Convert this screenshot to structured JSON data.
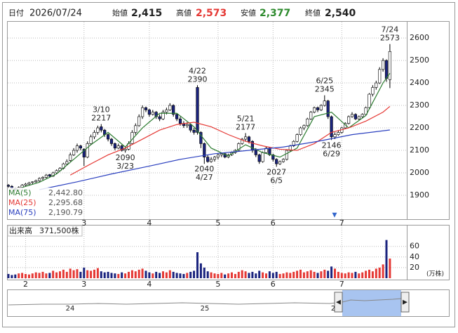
{
  "header": {
    "date_label": "日付",
    "date": "2026/07/24",
    "open_label": "始値",
    "open": "2,415",
    "high_label": "高値",
    "high": "2,573",
    "low_label": "安値",
    "low": "2,377",
    "close_label": "終値",
    "close": "2,540"
  },
  "chart_data": [
    {
      "type": "candlestick",
      "up_color": "#ffffff",
      "down_color": "#1a237e",
      "ylim": [
        1800,
        2669
      ],
      "yticks": [
        1900,
        2000,
        2100,
        2200,
        2300,
        2400,
        2500,
        2600
      ],
      "grid": true,
      "xticks": [
        {
          "value": 22,
          "label": "3"
        },
        {
          "value": 41,
          "label": "4"
        },
        {
          "value": 61,
          "label": "5"
        },
        {
          "value": 77,
          "label": "6"
        },
        {
          "value": 97,
          "label": "7"
        }
      ],
      "ohlc": [
        [
          1945,
          1950,
          1930,
          1940
        ],
        [
          1940,
          1945,
          1925,
          1930
        ],
        [
          1930,
          1935,
          1918,
          1925
        ],
        [
          1925,
          1940,
          1920,
          1935
        ],
        [
          1935,
          1950,
          1930,
          1945
        ],
        [
          1945,
          1955,
          1940,
          1950
        ],
        [
          1950,
          1960,
          1945,
          1955
        ],
        [
          1958,
          1962,
          1950,
          1960
        ],
        [
          1960,
          1970,
          1955,
          1965
        ],
        [
          1965,
          1980,
          1960,
          1975
        ],
        [
          1975,
          1985,
          1968,
          1980
        ],
        [
          1980,
          1995,
          1975,
          1990
        ],
        [
          1992,
          1995,
          1980,
          1985
        ],
        [
          1985,
          2005,
          1982,
          2000
        ],
        [
          2000,
          2015,
          1995,
          2010
        ],
        [
          2010,
          2025,
          2005,
          2020
        ],
        [
          2020,
          2045,
          2015,
          2040
        ],
        [
          2040,
          2060,
          2035,
          2050
        ],
        [
          2055,
          2090,
          2050,
          2080
        ],
        [
          2080,
          2110,
          2075,
          2100
        ],
        [
          2100,
          2130,
          2090,
          2120
        ],
        [
          2120,
          2125,
          2100,
          2110
        ],
        [
          2105,
          2110,
          2030,
          2070
        ],
        [
          2070,
          2140,
          2065,
          2130
        ],
        [
          2130,
          2170,
          2125,
          2160
        ],
        [
          2160,
          2190,
          2150,
          2180
        ],
        [
          2180,
          2210,
          2170,
          2200
        ],
        [
          2205,
          2217,
          2180,
          2190
        ],
        [
          2190,
          2195,
          2160,
          2170
        ],
        [
          2170,
          2175,
          2140,
          2150
        ],
        [
          2150,
          2155,
          2120,
          2130
        ],
        [
          2130,
          2135,
          2100,
          2110
        ],
        [
          2110,
          2130,
          2105,
          2120
        ],
        [
          2120,
          2125,
          2095,
          2100
        ],
        [
          2100,
          2115,
          2090,
          2105
        ],
        [
          2105,
          2140,
          2100,
          2130
        ],
        [
          2130,
          2190,
          2125,
          2180
        ],
        [
          2180,
          2220,
          2170,
          2210
        ],
        [
          2210,
          2260,
          2205,
          2250
        ],
        [
          2250,
          2300,
          2240,
          2290
        ],
        [
          2290,
          2295,
          2270,
          2280
        ],
        [
          2280,
          2285,
          2250,
          2260
        ],
        [
          2260,
          2280,
          2255,
          2270
        ],
        [
          2270,
          2275,
          2240,
          2250
        ],
        [
          2250,
          2260,
          2230,
          2240
        ],
        [
          2240,
          2280,
          2235,
          2270
        ],
        [
          2270,
          2290,
          2260,
          2280
        ],
        [
          2280,
          2310,
          2275,
          2300
        ],
        [
          2300,
          2305,
          2250,
          2260
        ],
        [
          2260,
          2265,
          2230,
          2240
        ],
        [
          2240,
          2250,
          2210,
          2220
        ],
        [
          2220,
          2230,
          2200,
          2210
        ],
        [
          2210,
          2225,
          2200,
          2215
        ],
        [
          2215,
          2220,
          2180,
          2190
        ],
        [
          2190,
          2200,
          2170,
          2180
        ],
        [
          2380,
          2390,
          2170,
          2180
        ],
        [
          2180,
          2185,
          2110,
          2130
        ],
        [
          2130,
          2135,
          2040,
          2070
        ],
        [
          2070,
          2080,
          2045,
          2050
        ],
        [
          2050,
          2070,
          2045,
          2060
        ],
        [
          2060,
          2075,
          2050,
          2070
        ],
        [
          2070,
          2085,
          2060,
          2080
        ],
        [
          2080,
          2090,
          2070,
          2085
        ],
        [
          2085,
          2090,
          2065,
          2070
        ],
        [
          2070,
          2085,
          2065,
          2080
        ],
        [
          2080,
          2095,
          2075,
          2090
        ],
        [
          2090,
          2105,
          2085,
          2100
        ],
        [
          2100,
          2135,
          2095,
          2130
        ],
        [
          2130,
          2155,
          2125,
          2150
        ],
        [
          2150,
          2177,
          2140,
          2160
        ],
        [
          2160,
          2165,
          2130,
          2140
        ],
        [
          2140,
          2145,
          2090,
          2100
        ],
        [
          2100,
          2110,
          2070,
          2080
        ],
        [
          2080,
          2085,
          2040,
          2050
        ],
        [
          2050,
          2095,
          2045,
          2090
        ],
        [
          2090,
          2115,
          2085,
          2110
        ],
        [
          2110,
          2115,
          2075,
          2080
        ],
        [
          2080,
          2085,
          2050,
          2060
        ],
        [
          2060,
          2065,
          2027,
          2040
        ],
        [
          2040,
          2055,
          2035,
          2050
        ],
        [
          2050,
          2065,
          2045,
          2060
        ],
        [
          2060,
          2105,
          2055,
          2100
        ],
        [
          2100,
          2125,
          2095,
          2120
        ],
        [
          2120,
          2145,
          2115,
          2140
        ],
        [
          2140,
          2175,
          2135,
          2170
        ],
        [
          2170,
          2205,
          2165,
          2200
        ],
        [
          2200,
          2215,
          2190,
          2210
        ],
        [
          2210,
          2245,
          2205,
          2240
        ],
        [
          2240,
          2275,
          2235,
          2270
        ],
        [
          2270,
          2295,
          2265,
          2290
        ],
        [
          2290,
          2295,
          2270,
          2280
        ],
        [
          2280,
          2305,
          2275,
          2300
        ],
        [
          2300,
          2345,
          2295,
          2320
        ],
        [
          2320,
          2325,
          2240,
          2250
        ],
        [
          2250,
          2255,
          2146,
          2160
        ],
        [
          2160,
          2180,
          2150,
          2170
        ],
        [
          2170,
          2190,
          2165,
          2180
        ],
        [
          2180,
          2205,
          2175,
          2200
        ],
        [
          2200,
          2225,
          2195,
          2220
        ],
        [
          2220,
          2255,
          2215,
          2250
        ],
        [
          2250,
          2270,
          2245,
          2260
        ],
        [
          2260,
          2265,
          2235,
          2240
        ],
        [
          2240,
          2255,
          2235,
          2250
        ],
        [
          2250,
          2265,
          2245,
          2260
        ],
        [
          2260,
          2295,
          2255,
          2290
        ],
        [
          2290,
          2355,
          2285,
          2350
        ],
        [
          2350,
          2390,
          2340,
          2380
        ],
        [
          2380,
          2410,
          2370,
          2400
        ],
        [
          2400,
          2470,
          2395,
          2460
        ],
        [
          2460,
          2510,
          2450,
          2500
        ],
        [
          2500,
          2505,
          2405,
          2420
        ],
        [
          2415,
          2573,
          2377,
          2540
        ]
      ],
      "ma": [
        {
          "name": "MA(5)",
          "color": "#2e7d32",
          "x": [
            4,
            9,
            14,
            19,
            24,
            29,
            34,
            39,
            44,
            49,
            54,
            59,
            64,
            69,
            74,
            79,
            84,
            89,
            94,
            99,
            104,
            109,
            111
          ],
          "values": [
            1935,
            1958,
            1995,
            2060,
            2125,
            2180,
            2115,
            2200,
            2265,
            2265,
            2205,
            2110,
            2075,
            2125,
            2090,
            2070,
            2110,
            2250,
            2270,
            2200,
            2255,
            2400,
            2442.8
          ],
          "last_value_label": "2,442.80"
        },
        {
          "name": "MA(25)",
          "color": "#e53935",
          "x": [
            18,
            24,
            29,
            34,
            39,
            44,
            49,
            54,
            59,
            64,
            69,
            74,
            79,
            84,
            89,
            94,
            99,
            104,
            109,
            111
          ],
          "values": [
            1990,
            2040,
            2080,
            2110,
            2150,
            2190,
            2215,
            2225,
            2205,
            2170,
            2140,
            2120,
            2105,
            2100,
            2130,
            2180,
            2200,
            2230,
            2270,
            2295.68
          ],
          "last_value_label": "2,295.68"
        },
        {
          "name": "MA(75)",
          "color": "#2a3fbf",
          "x": [
            9,
            20,
            30,
            41,
            50,
            60,
            70,
            80,
            90,
            100,
            111
          ],
          "values": [
            1925,
            1960,
            1995,
            2030,
            2060,
            2085,
            2100,
            2115,
            2140,
            2170,
            2190.79
          ],
          "last_value_label": "2,190.79"
        }
      ],
      "annotations": [
        {
          "x": 27,
          "date": "3/10",
          "value": 2217,
          "place": "above"
        },
        {
          "x": 34,
          "date": "3/23",
          "value": 2090,
          "place": "below"
        },
        {
          "x": 55,
          "date": "4/22",
          "value": 2390,
          "place": "above"
        },
        {
          "x": 57,
          "date": "4/27",
          "value": 2040,
          "place": "below"
        },
        {
          "x": 69,
          "date": "5/21",
          "value": 2177,
          "place": "above"
        },
        {
          "x": 78,
          "date": "6/5",
          "value": 2027,
          "place": "below"
        },
        {
          "x": 92,
          "date": "6/25",
          "value": 2345,
          "place": "above"
        },
        {
          "x": 94,
          "date": "6/29",
          "value": 2146,
          "place": "below"
        },
        {
          "x": 111,
          "date": "7/24",
          "value": 2573,
          "place": "above"
        }
      ]
    },
    {
      "type": "bar",
      "title": "出来高",
      "latest_label": "371,500株",
      "unit": "(万株)",
      "up_color": "#e53935",
      "down_color": "#1a237e",
      "ylim": [
        0,
        98
      ],
      "yticks": [
        20,
        40,
        60
      ],
      "grid": true,
      "xticks": [
        {
          "value": 5,
          "label": "2"
        },
        {
          "value": 22,
          "label": "3"
        },
        {
          "value": 41,
          "label": "4"
        },
        {
          "value": 61,
          "label": "5"
        },
        {
          "value": 77,
          "label": "6"
        },
        {
          "value": 97,
          "label": "7"
        }
      ],
      "values": [
        8,
        6,
        7,
        9,
        10,
        8,
        7,
        9,
        11,
        10,
        12,
        9,
        10,
        14,
        11,
        13,
        16,
        12,
        18,
        15,
        17,
        12,
        20,
        15,
        14,
        16,
        19,
        13,
        11,
        12,
        10,
        9,
        8,
        11,
        9,
        12,
        15,
        13,
        16,
        18,
        14,
        11,
        9,
        12,
        10,
        13,
        11,
        15,
        12,
        10,
        9,
        8,
        10,
        12,
        14,
        49,
        28,
        20,
        13,
        11,
        9,
        8,
        10,
        7,
        9,
        11,
        8,
        12,
        15,
        13,
        10,
        12,
        9,
        14,
        11,
        9,
        13,
        10,
        12,
        8,
        9,
        11,
        10,
        12,
        14,
        16,
        11,
        13,
        15,
        12,
        10,
        13,
        16,
        14,
        22,
        18,
        12,
        10,
        9,
        11,
        10,
        12,
        9,
        11,
        14,
        16,
        13,
        18,
        20,
        26,
        72,
        37
      ]
    }
  ],
  "navigator": {
    "labels": [
      "24",
      "25",
      "2"
    ]
  }
}
